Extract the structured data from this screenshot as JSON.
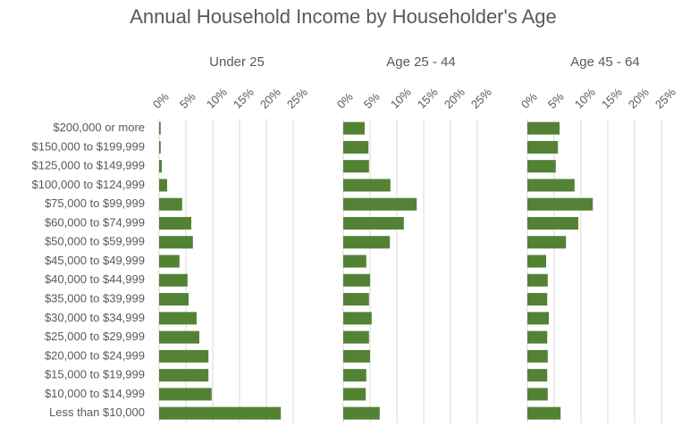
{
  "chart_data": {
    "type": "bar",
    "orientation": "horizontal",
    "title": "Annual Household Income by Householder's Age",
    "categories": [
      "$200,000 or more",
      "$150,000 to $199,999",
      "$125,000 to $149,999",
      "$100,000 to $124,999",
      "$75,000 to $99,999",
      "$60,000 to $74,999",
      "$50,000 to $59,999",
      "$45,000 to $49,999",
      "$40,000 to $44,999",
      "$35,000 to $39,999",
      "$30,000 to $34,999",
      "$25,000 to $29,999",
      "$20,000 to $24,999",
      "$15,000 to $19,999",
      "$10,000 to $14,999",
      "Less than $10,000"
    ],
    "series": [
      {
        "name": "Under 25",
        "color": "#548235",
        "values": [
          0.3,
          0.3,
          0.5,
          1.5,
          4.3,
          6.0,
          6.3,
          3.8,
          5.3,
          5.5,
          7.0,
          7.5,
          9.2,
          9.2,
          9.8,
          22.7
        ]
      },
      {
        "name": "Age 25 - 44",
        "color": "#548235",
        "values": [
          4.0,
          4.7,
          4.8,
          8.8,
          13.7,
          11.3,
          8.7,
          4.3,
          5.0,
          4.8,
          5.3,
          4.8,
          5.0,
          4.3,
          4.2,
          6.8
        ]
      },
      {
        "name": "Age 45 - 64",
        "color": "#548235",
        "values": [
          6.0,
          5.7,
          5.3,
          8.8,
          12.2,
          9.5,
          7.2,
          3.5,
          3.8,
          3.7,
          4.0,
          3.7,
          3.8,
          3.7,
          3.8,
          6.2
        ]
      }
    ],
    "xlim": [
      0,
      25
    ],
    "xticks": [
      {
        "value": 0,
        "label": "0%"
      },
      {
        "value": 5,
        "label": "5%"
      },
      {
        "value": 10,
        "label": "10%"
      },
      {
        "value": 15,
        "label": "15%"
      },
      {
        "value": 20,
        "label": "20%"
      },
      {
        "value": 25,
        "label": "25%"
      }
    ],
    "grid": true
  }
}
